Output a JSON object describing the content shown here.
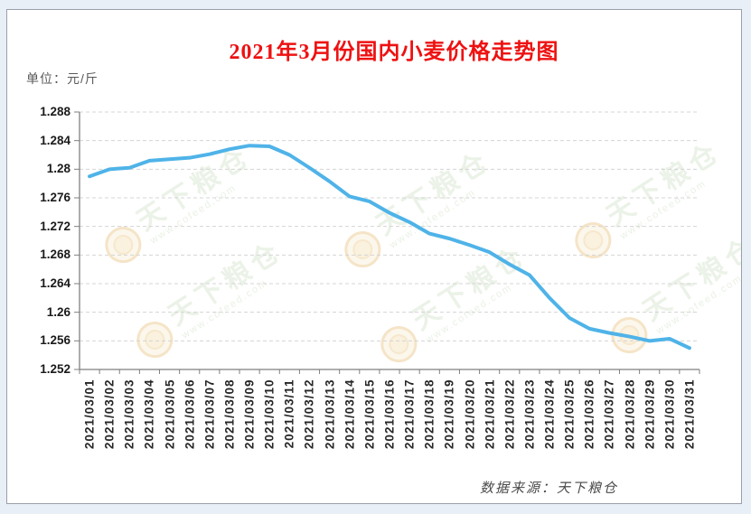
{
  "chart_data": {
    "type": "line",
    "title": "2021年3月份国内小麦价格走势图",
    "unit_label": "单位：元/斤",
    "source": "数据来源：天下粮仓",
    "xlabel": "",
    "ylabel": "元/斤",
    "ylim": [
      1.252,
      1.288
    ],
    "y_ticks": [
      "1.288",
      "1.284",
      "1.28",
      "1.276",
      "1.272",
      "1.268",
      "1.264",
      "1.26",
      "1.256",
      "1.252"
    ],
    "grid": "horizontal-dashed",
    "legend": "none",
    "categories": [
      "2021/03/01",
      "2021/03/02",
      "2021/03/03",
      "2021/03/04",
      "2021/03/05",
      "2021/03/06",
      "2021/03/07",
      "2021/03/08",
      "2021/03/09",
      "2021/03/10",
      "2021/03/11",
      "2021/03/12",
      "2021/03/13",
      "2021/03/14",
      "2021/03/15",
      "2021/03/16",
      "2021/03/17",
      "2021/03/18",
      "2021/03/19",
      "2021/03/20",
      "2021/03/21",
      "2021/03/22",
      "2021/03/23",
      "2021/03/24",
      "2021/03/25",
      "2021/03/26",
      "2021/03/27",
      "2021/03/28",
      "2021/03/29",
      "2021/03/30",
      "2021/03/31"
    ],
    "series": [
      {
        "name": "国内小麦价格",
        "values": [
          1.279,
          1.28,
          1.2802,
          1.2812,
          1.2814,
          1.2816,
          1.2821,
          1.2828,
          1.2833,
          1.2832,
          1.282,
          1.2802,
          1.2783,
          1.2762,
          1.2755,
          1.2739,
          1.2726,
          1.271,
          1.2703,
          1.2694,
          1.2684,
          1.2667,
          1.2652,
          1.262,
          1.2592,
          1.2577,
          1.2571,
          1.2566,
          1.256,
          1.2563,
          1.255
        ]
      }
    ],
    "watermark": {
      "text": "天下粮仓",
      "subtext": "www.cofeed.com"
    }
  },
  "colors": {
    "title": "#ee1111",
    "line": "#4fb3e8",
    "watermark_text": "#dce8d4",
    "watermark_subtext": "#d8e6d0"
  }
}
